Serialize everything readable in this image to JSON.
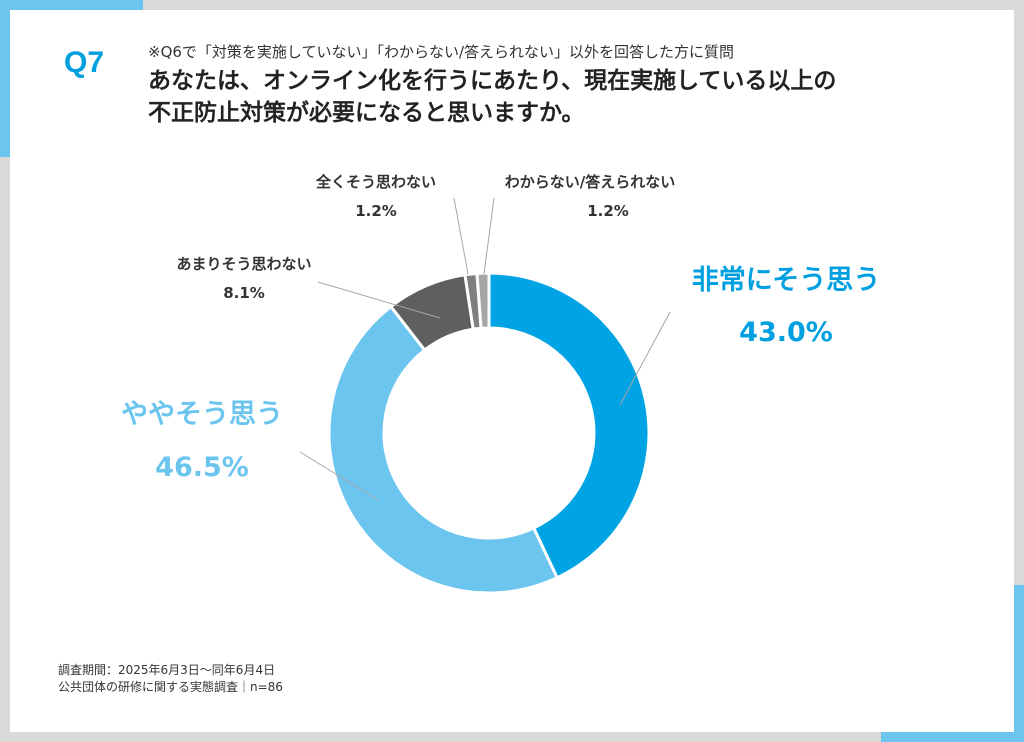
{
  "question": {
    "number": "Q7",
    "sub": "※Q6で「対策を実施していない」「わからない/答えられない」以外を回答した方に質問",
    "title_line1": "あなたは、オンライン化を行うにあたり、現在実施している以上の",
    "title_line2": "不正防止対策が必要になると思いますか。"
  },
  "footer": {
    "line1": "調査期間：2025年6月3日～同年6月4日",
    "line2": "公共団体の研修に関する実態調査｜n=86"
  },
  "chart_data": {
    "type": "pie",
    "donut": true,
    "start": "12 o'clock, clockwise",
    "slices": [
      {
        "label": "非常にそう思う",
        "value": 43.0,
        "display": "43.0%",
        "color": "#00a4e4",
        "label_color": "#00a0e0"
      },
      {
        "label": "ややそう思う",
        "value": 46.5,
        "display": "46.5%",
        "color": "#6cc5ef",
        "label_color": "#6cc5ef"
      },
      {
        "label": "あまりそう思わない",
        "value": 8.1,
        "display": "8.1%",
        "color": "#5f5f5f",
        "label_color": "#333333"
      },
      {
        "label": "全くそう思わない",
        "value": 1.2,
        "display": "1.2%",
        "color": "#7f7f7f",
        "label_color": "#333333"
      },
      {
        "label": "わからない/答えられない",
        "value": 1.2,
        "display": "1.2%",
        "color": "#a6a6a6",
        "label_color": "#333333"
      }
    ]
  }
}
